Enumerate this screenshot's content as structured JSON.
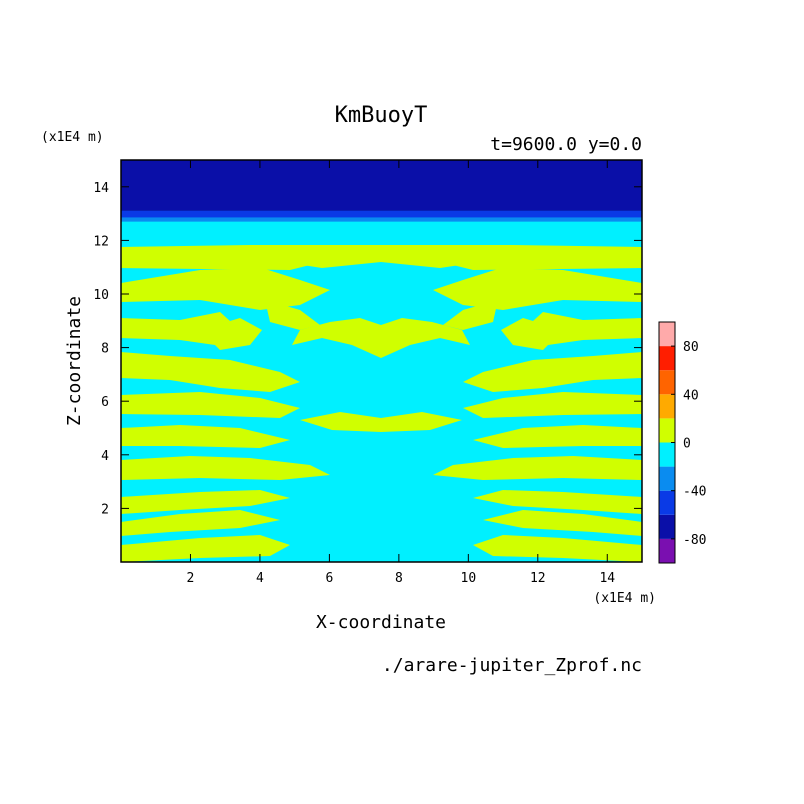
{
  "chart_data": {
    "type": "contour",
    "title": "KmBuoyT",
    "subtitle": "t=9600.0 y=0.0",
    "xlabel": "X-coordinate",
    "ylabel": "Z-coordinate",
    "x_unit": "(x1E4 m)",
    "y_unit": "(x1E4 m)",
    "source_file": "./arare-jupiter_Zprof.nc",
    "xlim": [
      0,
      15
    ],
    "ylim": [
      0,
      15
    ],
    "x_ticks": [
      2,
      4,
      6,
      8,
      10,
      12,
      14
    ],
    "y_ticks": [
      2,
      4,
      6,
      8,
      10,
      12,
      14
    ],
    "colorbar": {
      "range": [
        -100,
        100
      ],
      "step": 20,
      "tick_values": [
        80,
        40,
        0,
        -40,
        -80
      ],
      "tick_labels": [
        "80",
        "40",
        "0",
        "-40",
        "-80"
      ],
      "colors": [
        "#7a0fb0",
        "#0a0fa8",
        "#0a3ae6",
        "#0a8cf0",
        "#00f0ff",
        "#d0ff00",
        "#ffaa00",
        "#ff6400",
        "#ff1e00",
        "#ffaaaa"
      ]
    },
    "field": {
      "top_layers": [
        {
          "z_from": 13.1,
          "z_to": 15.0,
          "color": "#0a0fa8"
        },
        {
          "z_from": 12.85,
          "z_to": 13.1,
          "color": "#0a3ae6"
        },
        {
          "z_from": 12.7,
          "z_to": 12.85,
          "color": "#0a8cf0"
        }
      ],
      "interior_colors": [
        "#00f0ff",
        "#d0ff00"
      ],
      "symmetry": "mirror about x=7.5"
    }
  }
}
